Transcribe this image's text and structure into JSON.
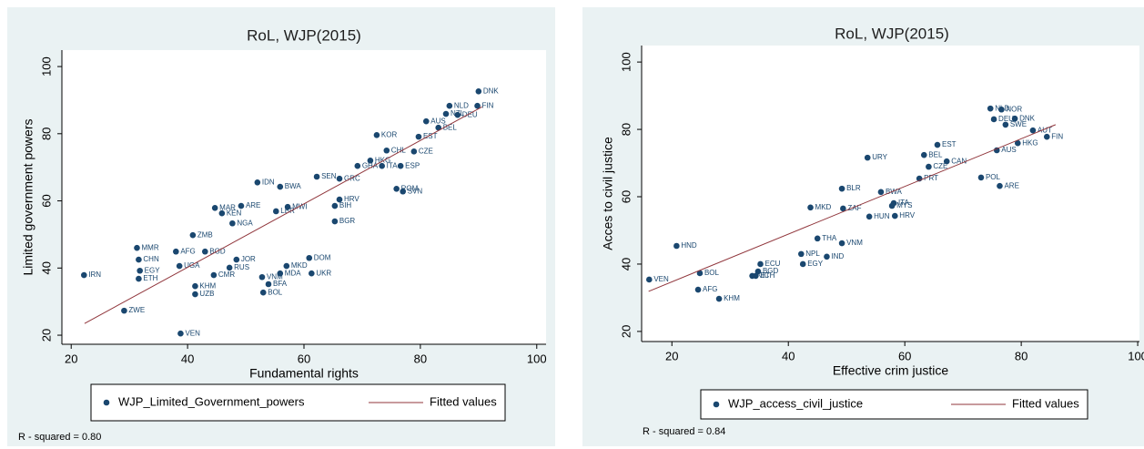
{
  "chart_data": [
    {
      "type": "scatter",
      "title": "RoL, WJP(2015)",
      "x_label": "Fundamental rights",
      "y_label": "Limited government powers",
      "note": "R - squared = 0.80",
      "xlim": [
        18.4,
        101.6
      ],
      "ylim": [
        17.3,
        104.9
      ],
      "xticks": [
        20,
        40,
        60,
        80,
        100
      ],
      "yticks": [
        20,
        40,
        60,
        80,
        100
      ],
      "series": [
        {
          "name": "WJP_Limited_Government_powers",
          "color": "#1a476f",
          "labels": [
            "DNK",
            "NLD",
            "FIN",
            "BEL",
            "AUS",
            "NZL",
            "DEU",
            "KOR",
            "EST",
            "CZE",
            "ESP",
            "ITA",
            "CHL",
            "GHA",
            "HKG",
            "SEN",
            "GRC",
            "ROM",
            "SVN",
            "IDN",
            "BWA",
            "HRV",
            "BIH",
            "MWI",
            "MAR",
            "ARE",
            "KEN",
            "LBR",
            "NGA",
            "BGR",
            "ZMB",
            "MMR",
            "AFG",
            "BGD",
            "CHN",
            "EGY",
            "ETH",
            "UGA",
            "IRN",
            "ZWE",
            "VEN",
            "KHM",
            "UZB",
            "RUS",
            "BOL",
            "BFA",
            "VNM",
            "MDA",
            "MKD",
            "UKR",
            "JOR",
            "CMR",
            "DOM"
          ],
          "x": [
            90,
            85,
            89.8,
            83.1,
            81,
            84.4,
            86.4,
            72.5,
            79.7,
            78.9,
            76.6,
            73.4,
            74.2,
            69.2,
            71.4,
            62.2,
            66.1,
            75.9,
            77,
            52,
            55.9,
            66.1,
            65.3,
            57.2,
            44.7,
            49.2,
            45.9,
            55.2,
            47.7,
            65.3,
            40.9,
            31.3,
            38,
            43,
            31.6,
            31.8,
            31.6,
            38.6,
            22.2,
            29.1,
            38.8,
            41.3,
            41.3,
            47.2,
            53,
            53.9,
            52.8,
            55.9,
            57,
            61.3,
            48.4,
            44.5,
            60.9
          ],
          "values": [
            92.6,
            88.3,
            88.3,
            81.8,
            83.7,
            85.9,
            85.6,
            79.6,
            79.1,
            74.7,
            70.4,
            70.4,
            75,
            70.4,
            72,
            67.2,
            66.6,
            63.6,
            62.8,
            65.5,
            64.2,
            60.4,
            58.5,
            58.2,
            57.9,
            58.5,
            56.3,
            56.9,
            53.3,
            53.9,
            49.8,
            46,
            44.9,
            44.9,
            42.5,
            39.2,
            36.8,
            40.6,
            37.9,
            27.3,
            20.5,
            34.6,
            32.2,
            40.1,
            32.7,
            35.2,
            37.3,
            38.4,
            40.6,
            38.4,
            42.5,
            37.9,
            43
          ]
        },
        {
          "name": "Fitted values",
          "color": "#90353b",
          "x": [
            22.3,
            90.6
          ],
          "values": [
            23.5,
            88
          ]
        }
      ]
    },
    {
      "type": "scatter",
      "title": "RoL, WJP(2015)",
      "x_label": "Effective crim justice",
      "y_label": "Acces to civil justice",
      "note": "R - squared = 0.84",
      "xlim": [
        14.8,
        100.3
      ],
      "ylim": [
        17,
        104.9
      ],
      "xticks": [
        20,
        40,
        60,
        80,
        100
      ],
      "yticks": [
        20,
        40,
        60,
        80,
        100
      ],
      "series": [
        {
          "name": "WJP_access_civil_justice",
          "color": "#1a476f",
          "labels": [
            "VEN",
            "HND",
            "AFG",
            "KHM",
            "BOL",
            "ETH",
            "EGY",
            "IND",
            "NPL",
            "VNM",
            "URY",
            "NLD",
            "NOR",
            "DNK",
            "DEU",
            "SWE",
            "AUT",
            "FIN",
            "HKG",
            "EST",
            "AUS",
            "BEL",
            "CAN",
            "CZE",
            "POL",
            "ARE",
            "PRT",
            "ITA",
            "MYS",
            "HRV",
            "HUN",
            "BWA",
            "ZAF",
            "MKD",
            "THA",
            "ECU",
            "BLR",
            "BGD",
            "NIC"
          ],
          "x": [
            16.1,
            20.8,
            24.5,
            28.1,
            24.8,
            34.4,
            42.5,
            46.6,
            42.2,
            49.2,
            53.6,
            74.7,
            76.6,
            78.9,
            75.3,
            77.3,
            82,
            84.4,
            79.4,
            65.6,
            75.8,
            63.3,
            67.2,
            64.1,
            73.1,
            76.3,
            62.5,
            58.1,
            57.8,
            58.3,
            53.9,
            55.9,
            49.4,
            43.8,
            45,
            35.2,
            49.2,
            34.8,
            33.8
          ],
          "values": [
            35.4,
            45.4,
            32.4,
            29.7,
            37.3,
            36.5,
            40,
            42.2,
            43,
            46.2,
            71.6,
            86.2,
            85.9,
            83.2,
            83,
            81.4,
            79.7,
            77.8,
            75.9,
            75.4,
            73.8,
            72.4,
            70.5,
            68.9,
            65.7,
            63.2,
            65.4,
            58.1,
            57.3,
            54.3,
            54.1,
            61.4,
            56.5,
            56.8,
            47.6,
            40,
            62.4,
            37.8,
            36.5
          ]
        },
        {
          "name": "Fitted values",
          "color": "#90353b",
          "x": [
            16,
            85.9
          ],
          "values": [
            31.9,
            81.4
          ]
        }
      ]
    }
  ]
}
